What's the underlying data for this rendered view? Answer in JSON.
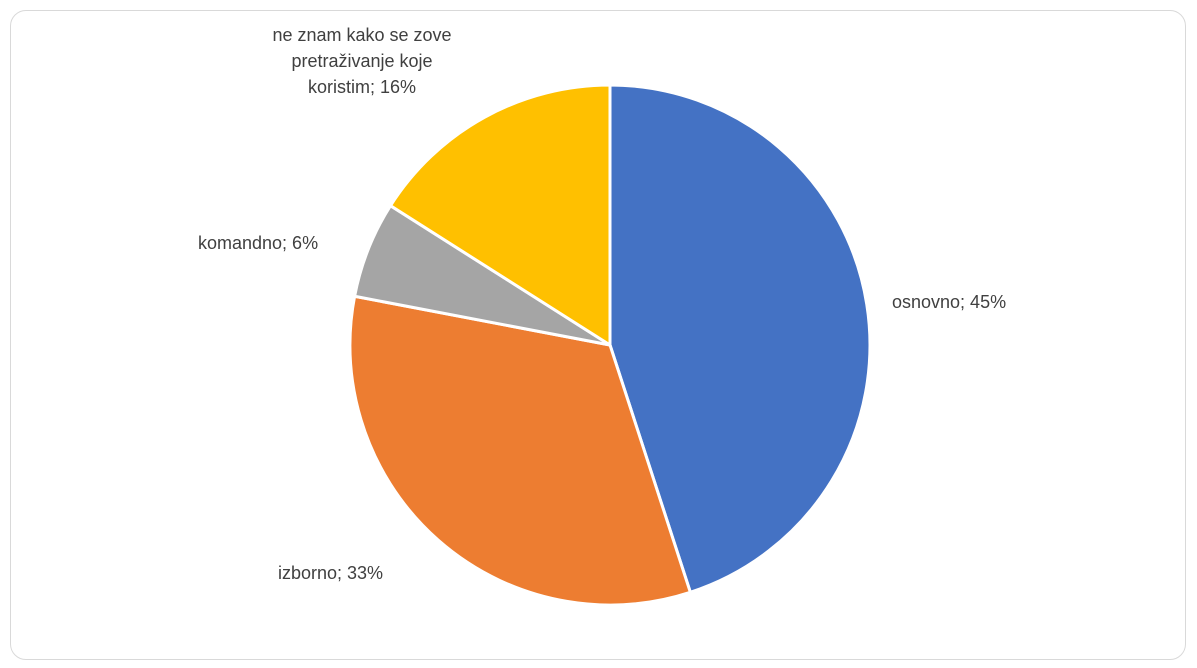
{
  "chart_data": {
    "type": "pie",
    "slices": [
      {
        "label": "osnovno",
        "value": 45,
        "color": "#4472C4"
      },
      {
        "label": "izborno",
        "value": 33,
        "color": "#ED7D31"
      },
      {
        "label": "komandno",
        "value": 6,
        "color": "#A5A5A5"
      },
      {
        "label": "ne znam kako se zove pretraživanje koje koristim",
        "value": 16,
        "color": "#FFC000"
      }
    ],
    "data_labels": [
      "osnovno; 45%",
      "izborno; 33%",
      "komandno; 6%",
      "ne znam kako se zove pretraživanje koje koristim; 16%"
    ],
    "legend": false
  }
}
